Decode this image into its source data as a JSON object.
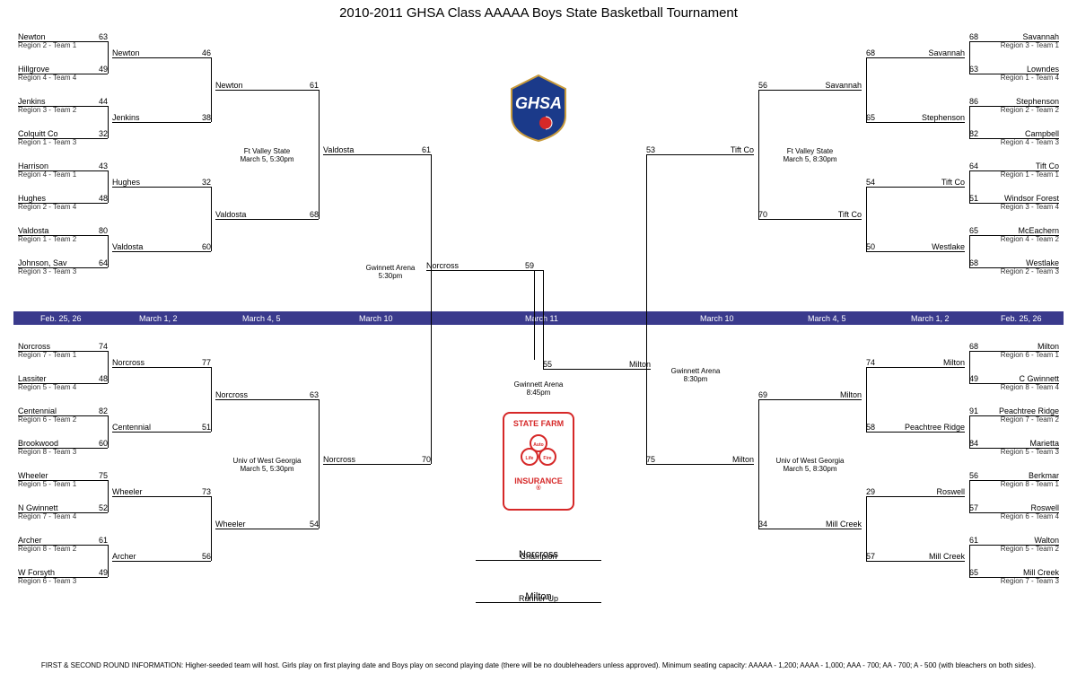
{
  "title": "2010-2011 GHSA Class AAAAA Boys State Basketball Tournament",
  "dates": [
    "Feb. 25, 26",
    "March 1, 2",
    "March 4, 5",
    "March 10",
    "March 11",
    "March 10",
    "March 4, 5",
    "March 1, 2",
    "Feb. 25, 26"
  ],
  "date_bar_color": "#3a3a8c",
  "logos": {
    "ghsa": "GHSA",
    "sponsor_lines": [
      "STATE FARM",
      "",
      "INSURANCE"
    ],
    "sponsor_tag": "Auto Life Fire"
  },
  "footer": "FIRST & SECOND ROUND INFORMATION: Higher-seeded team will host.  Girls play on first playing date and Boys play on second playing date (there will be no doubleheaders unless approved).  Minimum seating capacity: AAAAA - 1,200; AAAA - 1,000; AAA - 700; AA - 700; A - 500 (with bleachers on both sides).",
  "left_top_r1": [
    {
      "name": "Newton",
      "sub": "Region 2 - Team 1",
      "score": "63"
    },
    {
      "name": "Hillgrove",
      "sub": "Region 4 - Team 4",
      "score": "49"
    },
    {
      "name": "Jenkins",
      "sub": "Region 3 - Team 2",
      "score": "44"
    },
    {
      "name": "Colquitt Co",
      "sub": "Region 1 - Team 3",
      "score": "32"
    },
    {
      "name": "Harrison",
      "sub": "Region 4 - Team 1",
      "score": "43"
    },
    {
      "name": "Hughes",
      "sub": "Region 2 - Team 4",
      "score": "48"
    },
    {
      "name": "Valdosta",
      "sub": "Region 1 - Team 2",
      "score": "80"
    },
    {
      "name": "Johnson, Sav",
      "sub": "Region 3 - Team 3",
      "score": "64"
    }
  ],
  "left_top_r2": [
    {
      "name": "Newton",
      "score": "46"
    },
    {
      "name": "Jenkins",
      "score": "38"
    },
    {
      "name": "Hughes",
      "score": "32"
    },
    {
      "name": "Valdosta",
      "score": "60"
    }
  ],
  "left_top_r3": [
    {
      "name": "Newton",
      "score": "61"
    },
    {
      "name": "Valdosta",
      "score": "68"
    }
  ],
  "left_top_r3_note": {
    "l1": "Ft Valley State",
    "l2": "March 5, 5:30pm"
  },
  "left_top_r4": {
    "name": "Valdosta",
    "score": "61"
  },
  "left_bot_r1": [
    {
      "name": "Norcross",
      "sub": "Region 7 - Team 1",
      "score": "74"
    },
    {
      "name": "Lassiter",
      "sub": "Region 5 - Team 4",
      "score": "48"
    },
    {
      "name": "Centennial",
      "sub": "Region 6 - Team 2",
      "score": "82"
    },
    {
      "name": "Brookwood",
      "sub": "Region 8 - Team 3",
      "score": "60"
    },
    {
      "name": "Wheeler",
      "sub": "Region 5 - Team 1",
      "score": "75"
    },
    {
      "name": "N Gwinnett",
      "sub": "Region 7 - Team 4",
      "score": "52"
    },
    {
      "name": "Archer",
      "sub": "Region 8 - Team 2",
      "score": "61"
    },
    {
      "name": "W Forsyth",
      "sub": "Region 6 - Team 3",
      "score": "49"
    }
  ],
  "left_bot_r2": [
    {
      "name": "Norcross",
      "score": "77"
    },
    {
      "name": "Centennial",
      "score": "51"
    },
    {
      "name": "Wheeler",
      "score": "73"
    },
    {
      "name": "Archer",
      "score": "56"
    }
  ],
  "left_bot_r3": [
    {
      "name": "Norcross",
      "score": "63"
    },
    {
      "name": "Wheeler",
      "score": "54"
    }
  ],
  "left_bot_r3_note": {
    "l1": "Univ of West Georgia",
    "l2": "March 5, 5:30pm"
  },
  "left_bot_r4": {
    "name": "Norcross",
    "score": "70"
  },
  "left_semi_note": {
    "l1": "Gwinnett Arena",
    "l2": "5:30pm"
  },
  "left_final": {
    "name": "Norcross",
    "score": "59"
  },
  "right_top_r1": [
    {
      "name": "Savannah",
      "sub": "Region 3 - Team 1",
      "score": "68"
    },
    {
      "name": "Lowndes",
      "sub": "Region 1 - Team 4",
      "score": "63"
    },
    {
      "name": "Stephenson",
      "sub": "Region 2 - Team 2",
      "score": "86"
    },
    {
      "name": "Campbell",
      "sub": "Region 4 - Team 3",
      "score": "82"
    },
    {
      "name": "Tift Co",
      "sub": "Region 1 - Team 1",
      "score": "64"
    },
    {
      "name": "Windsor Forest",
      "sub": "Region 3 - Team 4",
      "score": "51"
    },
    {
      "name": "McEachern",
      "sub": "Region 4 - Team 2",
      "score": "65"
    },
    {
      "name": "Westlake",
      "sub": "Region 2 - Team 3",
      "score": "68"
    }
  ],
  "right_top_r2": [
    {
      "name": "Savannah",
      "score": "68"
    },
    {
      "name": "Stephenson",
      "score": "65"
    },
    {
      "name": "Tift Co",
      "score": "54"
    },
    {
      "name": "Westlake",
      "score": "50"
    }
  ],
  "right_top_r3": [
    {
      "name": "Savannah",
      "score": "56"
    },
    {
      "name": "Tift Co",
      "score": "70"
    }
  ],
  "right_top_r3_note": {
    "l1": "Ft Valley State",
    "l2": "March 5, 8:30pm"
  },
  "right_top_r4": {
    "name": "Tift Co",
    "score": "53"
  },
  "right_bot_r1": [
    {
      "name": "Milton",
      "sub": "Region 6 - Team 1",
      "score": "68"
    },
    {
      "name": "C Gwinnett",
      "sub": "Region 8 - Team 4",
      "score": "49"
    },
    {
      "name": "Peachtree Ridge",
      "sub": "Region 7 - Team 2",
      "score": "91"
    },
    {
      "name": "Marietta",
      "sub": "Region 5 - Team 3",
      "score": "84"
    },
    {
      "name": "Berkmar",
      "sub": "Region 8 - Team 1",
      "score": "56"
    },
    {
      "name": "Roswell",
      "sub": "Region 6 - Team 4",
      "score": "57"
    },
    {
      "name": "Walton",
      "sub": "Region 5 - Team 2",
      "score": "61"
    },
    {
      "name": "Mill Creek",
      "sub": "Region 7 - Team 3",
      "score": "65"
    }
  ],
  "right_bot_r2": [
    {
      "name": "Milton",
      "score": "74"
    },
    {
      "name": "Peachtree Ridge",
      "score": "58"
    },
    {
      "name": "Roswell",
      "score": "29"
    },
    {
      "name": "Mill Creek",
      "score": "57"
    }
  ],
  "right_bot_r3": [
    {
      "name": "Milton",
      "score": "69"
    },
    {
      "name": "Mill Creek",
      "score": "34"
    }
  ],
  "right_bot_r3_note": {
    "l1": "Univ of West Georgia",
    "l2": "March 5, 8:30pm"
  },
  "right_bot_r4": {
    "name": "Milton",
    "score": "75"
  },
  "right_semi_note": {
    "l1": "Gwinnett Arena",
    "l2": "8:30pm"
  },
  "right_final": {
    "name": "Milton",
    "score": "55"
  },
  "final_note": {
    "l1": "Gwinnett Arena",
    "l2": "8:45pm"
  },
  "champion": "Norcross",
  "champion_label": "Champion",
  "runnerup": "Milton",
  "runnerup_label": "Runner-Up"
}
